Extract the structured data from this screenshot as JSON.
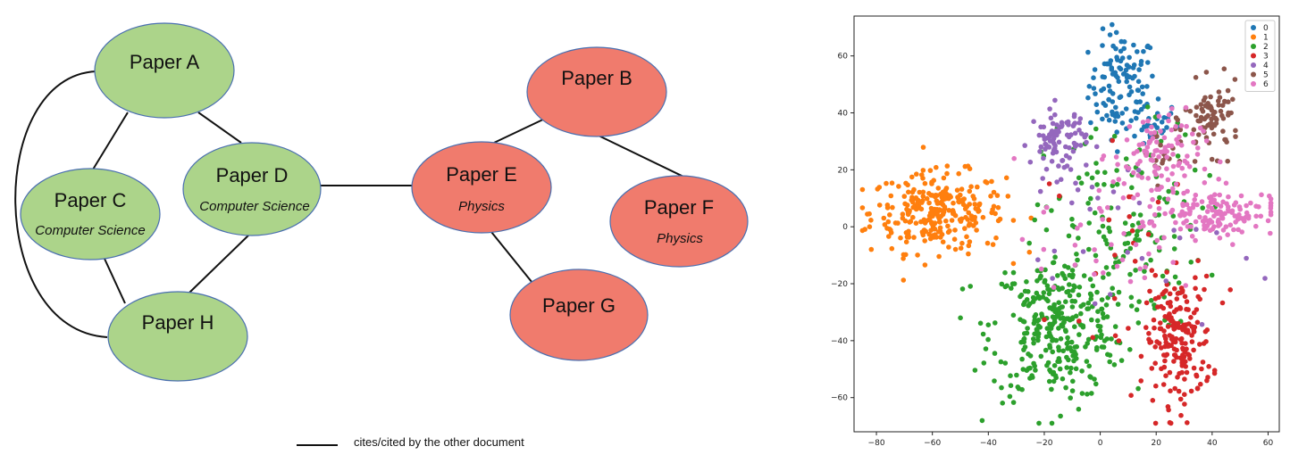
{
  "diagram": {
    "legend_text": "cites/cited by the other document",
    "colors": {
      "cs": "#acd48a",
      "physics": "#f07b6d",
      "stroke": "#4a6fb0",
      "edge": "#111111"
    },
    "nodes": [
      {
        "id": "A",
        "title": "Paper A",
        "subtitle": "",
        "field": "cs"
      },
      {
        "id": "C",
        "title": "Paper C",
        "subtitle": "Computer Science",
        "field": "cs"
      },
      {
        "id": "D",
        "title": "Paper D",
        "subtitle": "Computer Science",
        "field": "cs"
      },
      {
        "id": "H",
        "title": "Paper H",
        "subtitle": "",
        "field": "cs"
      },
      {
        "id": "B",
        "title": "Paper B",
        "subtitle": "",
        "field": "physics"
      },
      {
        "id": "E",
        "title": "Paper E",
        "subtitle": "Physics",
        "field": "physics"
      },
      {
        "id": "F",
        "title": "Paper F",
        "subtitle": "Physics",
        "field": "physics"
      },
      {
        "id": "G",
        "title": "Paper G",
        "subtitle": "",
        "field": "physics"
      }
    ],
    "edges": [
      [
        "A",
        "C"
      ],
      [
        "A",
        "D"
      ],
      [
        "A",
        "H"
      ],
      [
        "C",
        "H"
      ],
      [
        "D",
        "H"
      ],
      [
        "D",
        "E"
      ],
      [
        "E",
        "B"
      ],
      [
        "B",
        "F"
      ],
      [
        "E",
        "G"
      ]
    ]
  },
  "chart_data": {
    "type": "scatter",
    "xlim": [
      -88,
      64
    ],
    "ylim": [
      -72,
      74
    ],
    "xticks": [
      -80,
      -60,
      -40,
      -20,
      0,
      20,
      40,
      60
    ],
    "yticks": [
      -60,
      -40,
      -20,
      0,
      20,
      40,
      60
    ],
    "legend_position": "top-right",
    "series": [
      {
        "name": "0",
        "color": "#1f77b4",
        "clusters": [
          {
            "cx": 8,
            "cy": 50,
            "sx": 6,
            "sy": 9,
            "n": 110
          },
          {
            "cx": 15,
            "cy": 36,
            "sx": 7,
            "sy": 4,
            "n": 30
          }
        ]
      },
      {
        "name": "1",
        "color": "#ff7f0e",
        "clusters": [
          {
            "cx": -58,
            "cy": 5,
            "sx": 12,
            "sy": 7,
            "n": 280
          }
        ]
      },
      {
        "name": "2",
        "color": "#2ca02c",
        "clusters": [
          {
            "cx": -15,
            "cy": -35,
            "sx": 12,
            "sy": 13,
            "n": 330
          },
          {
            "cx": 8,
            "cy": 0,
            "sx": 14,
            "sy": 18,
            "n": 140
          }
        ]
      },
      {
        "name": "3",
        "color": "#d62728",
        "clusters": [
          {
            "cx": 28,
            "cy": -40,
            "sx": 6,
            "sy": 11,
            "n": 190
          },
          {
            "cx": 10,
            "cy": -5,
            "sx": 14,
            "sy": 16,
            "n": 25
          }
        ]
      },
      {
        "name": "4",
        "color": "#9467bd",
        "clusters": [
          {
            "cx": -15,
            "cy": 30,
            "sx": 5,
            "sy": 6,
            "n": 90
          },
          {
            "cx": 10,
            "cy": -5,
            "sx": 18,
            "sy": 18,
            "n": 30
          }
        ]
      },
      {
        "name": "5",
        "color": "#8c564b",
        "clusters": [
          {
            "cx": 40,
            "cy": 38,
            "sx": 5,
            "sy": 6,
            "n": 80
          },
          {
            "cx": 22,
            "cy": 25,
            "sx": 4,
            "sy": 5,
            "n": 20
          }
        ]
      },
      {
        "name": "6",
        "color": "#e377c2",
        "clusters": [
          {
            "cx": 42,
            "cy": 5,
            "sx": 10,
            "sy": 4,
            "n": 130
          },
          {
            "cx": 20,
            "cy": 25,
            "sx": 8,
            "sy": 8,
            "n": 90
          },
          {
            "cx": 8,
            "cy": 0,
            "sx": 15,
            "sy": 15,
            "n": 60
          }
        ]
      }
    ]
  }
}
